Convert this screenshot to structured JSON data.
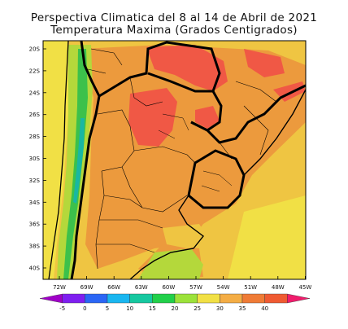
{
  "title": "Perspectiva Climatica del 8 al 14 de Abril de 2021",
  "subtitle": "Temperatura Maxima (Grados Centigrados)",
  "lat_labels": [
    "20S",
    "22S",
    "24S",
    "26S",
    "28S",
    "30S",
    "32S",
    "34S",
    "36S",
    "38S",
    "40S"
  ],
  "lon_labels": [
    "72W",
    "69W",
    "66W",
    "63W",
    "60W",
    "57W",
    "54W",
    "51W",
    "48W",
    "45W"
  ],
  "colorbar": {
    "ticks": [
      "-5",
      "0",
      "5",
      "10",
      "15",
      "20",
      "25",
      "30",
      "35",
      "40"
    ],
    "colors": [
      "#a000c8",
      "#7f1ff0",
      "#2b66f5",
      "#19b6f0",
      "#16c8a0",
      "#21d04a",
      "#9be23a",
      "#f1e045",
      "#f4ad45",
      "#ef7b36",
      "#ef5a32",
      "#f01c6c"
    ]
  },
  "palette": {
    "temp_25_30": "#efc542",
    "temp_30_35": "#ec9a3d",
    "temp_35_40": "#f05845",
    "temp_20_25": "#b4d83b",
    "temp_15_20": "#3cc14b",
    "temp_10_15": "#19b7a3"
  }
}
